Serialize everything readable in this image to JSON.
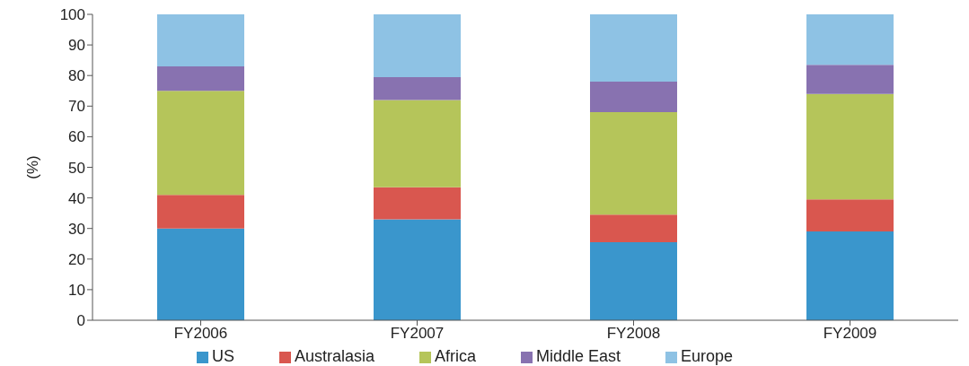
{
  "chart_data": {
    "type": "bar",
    "stacked": true,
    "ylabel": "(%)",
    "categories": [
      "FY2006",
      "FY2007",
      "FY2008",
      "FY2009"
    ],
    "series": [
      {
        "name": "US",
        "color": "#3a96cc",
        "values": [
          30,
          33,
          25.5,
          29
        ]
      },
      {
        "name": "Australasia",
        "color": "#d9574f",
        "values": [
          11,
          10.5,
          9,
          10.5
        ]
      },
      {
        "name": "Africa",
        "color": "#b5c55a",
        "values": [
          34,
          28.5,
          33.5,
          34.5
        ]
      },
      {
        "name": "Middle East",
        "color": "#8872b0",
        "values": [
          8,
          7.5,
          10,
          9.5
        ]
      },
      {
        "name": "Europe",
        "color": "#8ec2e4",
        "values": [
          17,
          20.5,
          22,
          16.5
        ]
      }
    ],
    "ylim": [
      0,
      100
    ],
    "yticks": [
      0,
      10,
      20,
      30,
      40,
      50,
      60,
      70,
      80,
      90,
      100
    ],
    "grid": false,
    "legend": "bottom"
  }
}
